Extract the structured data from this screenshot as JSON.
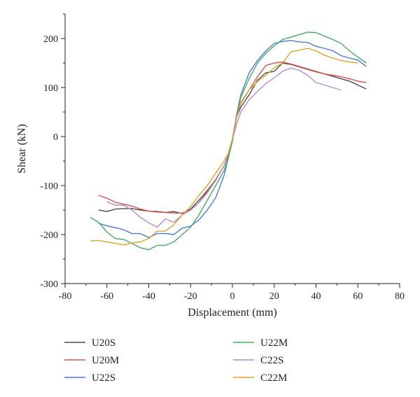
{
  "chart_data": {
    "type": "line",
    "title": "",
    "xlabel": "Displacement (mm)",
    "ylabel": "Shear (kN)",
    "xlim": [
      -80,
      80
    ],
    "ylim": [
      -300,
      250
    ],
    "xticks": [
      -80,
      -60,
      -40,
      -20,
      0,
      20,
      40,
      60,
      80
    ],
    "yticks": [
      -300,
      -200,
      -100,
      0,
      100,
      200
    ],
    "grid": false,
    "legend_position": "bottom",
    "series": [
      {
        "name": "U20S",
        "color": "#4d4d4d",
        "x": [
          -64,
          -60,
          -56,
          -52,
          -48,
          -44,
          -40,
          -36,
          -32,
          -28,
          -24,
          -20,
          -16,
          -12,
          -8,
          -4,
          -2,
          0,
          2,
          4,
          8,
          12,
          16,
          20,
          24,
          28,
          32,
          36,
          40,
          44,
          48,
          52,
          56,
          60,
          64
        ],
        "y": [
          -150,
          -153,
          -148,
          -147,
          -147,
          -150,
          -152,
          -153,
          -155,
          -153,
          -157,
          -148,
          -130,
          -110,
          -88,
          -60,
          -40,
          -5,
          40,
          60,
          85,
          115,
          130,
          133,
          150,
          147,
          142,
          137,
          132,
          128,
          123,
          118,
          113,
          105,
          97
        ]
      },
      {
        "name": "U20M",
        "color": "#d9534f",
        "x": [
          -64,
          -60,
          -56,
          -52,
          -48,
          -44,
          -40,
          -36,
          -32,
          -28,
          -24,
          -20,
          -16,
          -12,
          -8,
          -4,
          -2,
          0,
          2,
          4,
          8,
          12,
          16,
          20,
          24,
          28,
          32,
          36,
          40,
          44,
          48,
          52,
          56,
          60,
          64
        ],
        "y": [
          -120,
          -126,
          -134,
          -138,
          -142,
          -148,
          -152,
          -154,
          -155,
          -156,
          -156,
          -150,
          -135,
          -112,
          -88,
          -60,
          -40,
          -5,
          40,
          68,
          95,
          122,
          145,
          150,
          152,
          148,
          143,
          138,
          133,
          128,
          125,
          122,
          118,
          113,
          110
        ]
      },
      {
        "name": "U22S",
        "color": "#4a7bd1",
        "x": [
          -64,
          -60,
          -56,
          -52,
          -48,
          -44,
          -40,
          -36,
          -32,
          -28,
          -24,
          -20,
          -16,
          -12,
          -8,
          -4,
          -2,
          0,
          2,
          4,
          8,
          12,
          16,
          20,
          24,
          28,
          32,
          36,
          40,
          44,
          48,
          52,
          56,
          60,
          64
        ],
        "y": [
          -177,
          -182,
          -186,
          -190,
          -198,
          -198,
          -206,
          -198,
          -198,
          -200,
          -187,
          -183,
          -170,
          -150,
          -125,
          -80,
          -45,
          -5,
          45,
          85,
          130,
          155,
          175,
          190,
          194,
          196,
          193,
          192,
          184,
          180,
          175,
          165,
          160,
          156,
          143
        ]
      },
      {
        "name": "U22M",
        "color": "#4aa865",
        "x": [
          -68,
          -64,
          -60,
          -56,
          -52,
          -48,
          -44,
          -40,
          -36,
          -32,
          -28,
          -24,
          -20,
          -16,
          -12,
          -8,
          -4,
          -2,
          0,
          2,
          4,
          8,
          12,
          16,
          20,
          24,
          28,
          32,
          36,
          40,
          44,
          48,
          52,
          56,
          60,
          64
        ],
        "y": [
          -165,
          -175,
          -195,
          -208,
          -210,
          -218,
          -227,
          -231,
          -222,
          -222,
          -215,
          -200,
          -185,
          -160,
          -130,
          -100,
          -70,
          -45,
          -10,
          40,
          80,
          118,
          150,
          170,
          185,
          198,
          203,
          208,
          213,
          212,
          205,
          198,
          190,
          175,
          162,
          150
        ]
      },
      {
        "name": "C22S",
        "color": "#b58cc9",
        "x": [
          -60,
          -56,
          -52,
          -48,
          -44,
          -40,
          -36,
          -32,
          -28,
          -24,
          -20,
          -16,
          -12,
          -8,
          -4,
          -2,
          0,
          2,
          4,
          8,
          12,
          16,
          20,
          24,
          28,
          32,
          36,
          40,
          44,
          48,
          52
        ],
        "y": [
          -133,
          -140,
          -140,
          -150,
          -165,
          -176,
          -185,
          -168,
          -175,
          -160,
          -150,
          -135,
          -115,
          -90,
          -60,
          -35,
          -5,
          25,
          50,
          75,
          92,
          108,
          120,
          133,
          140,
          135,
          125,
          110,
          105,
          100,
          95
        ]
      },
      {
        "name": "C22M",
        "color": "#d9a62a",
        "x": [
          -68,
          -64,
          -60,
          -56,
          -52,
          -48,
          -44,
          -40,
          -36,
          -32,
          -28,
          -24,
          -20,
          -16,
          -12,
          -8,
          -4,
          -2,
          0,
          2,
          4,
          8,
          12,
          16,
          20,
          24,
          28,
          32,
          36,
          40,
          44,
          48,
          52,
          56,
          60
        ],
        "y": [
          -213,
          -212,
          -215,
          -218,
          -221,
          -217,
          -215,
          -208,
          -193,
          -193,
          -180,
          -160,
          -143,
          -120,
          -100,
          -75,
          -50,
          -35,
          -5,
          40,
          70,
          95,
          112,
          125,
          140,
          150,
          173,
          176,
          180,
          175,
          166,
          160,
          155,
          152,
          150
        ]
      }
    ]
  }
}
